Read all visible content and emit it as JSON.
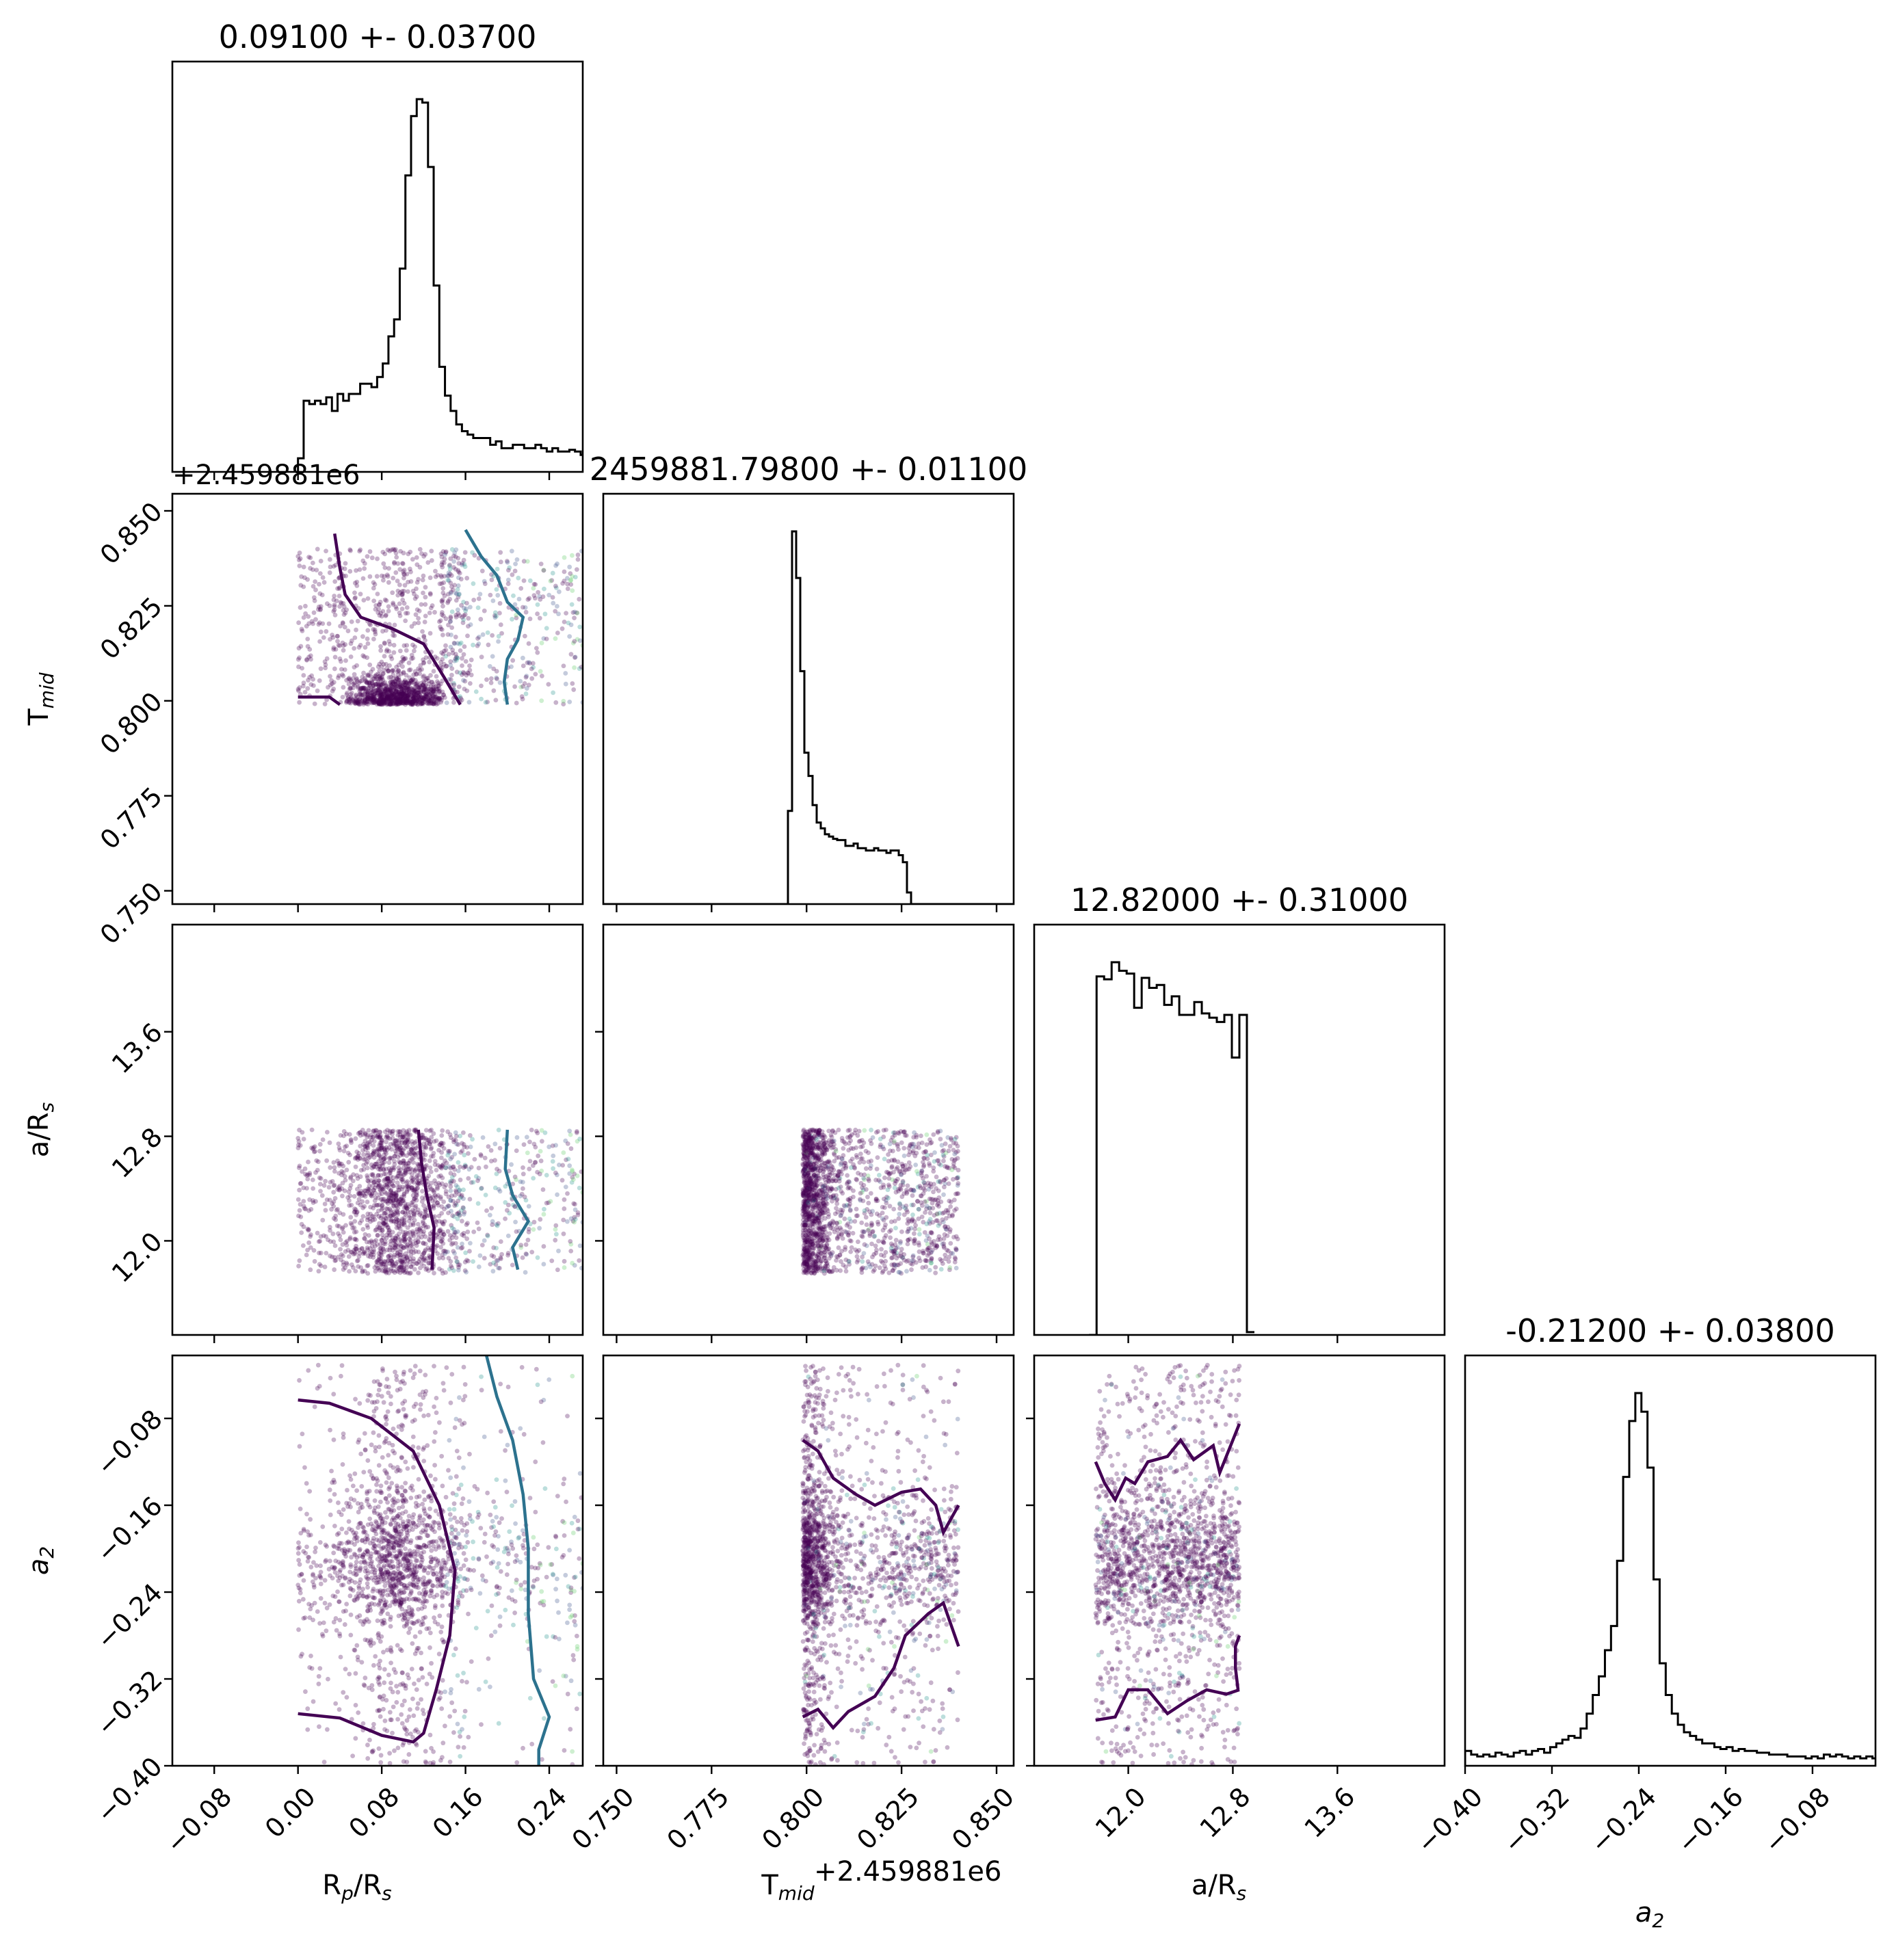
{
  "chart_data": {
    "type": "scatter",
    "kind": "corner-plot",
    "parameters": [
      {
        "label": "R_p/R_s",
        "title": "0.09100 +- 0.03700",
        "range": [
          -0.12,
          0.272
        ],
        "ticks": [
          -0.08,
          0.0,
          0.08,
          0.16,
          0.24
        ],
        "tick_labels": [
          "−0.08",
          "0.00",
          "0.08",
          "0.16",
          "0.24"
        ],
        "samples_range": [
          0.0,
          0.272
        ]
      },
      {
        "label": "T_mid",
        "title": "2459881.79800 +- 0.01100",
        "offset": "+2.459881e6",
        "range": [
          0.7465,
          0.8545
        ],
        "ticks": [
          0.75,
          0.775,
          0.8,
          0.825,
          0.85
        ],
        "tick_labels": [
          "0.750",
          "0.775",
          "0.800",
          "0.825",
          "0.850"
        ],
        "samples_range": [
          0.799,
          0.84
        ]
      },
      {
        "label": "a/R_s",
        "title": "12.82000 +- 0.31000",
        "range": [
          11.28,
          14.42
        ],
        "ticks": [
          12.0,
          12.8,
          13.6
        ],
        "tick_labels": [
          "12.0",
          "12.8",
          "13.6"
        ],
        "samples_range": [
          11.75,
          12.85
        ]
      },
      {
        "label": "a_2",
        "title": "-0.21200 +- 0.03800",
        "range": [
          -0.4,
          -0.022
        ],
        "ticks": [
          -0.4,
          -0.32,
          -0.24,
          -0.16,
          -0.08
        ],
        "tick_labels": [
          "−0.40",
          "−0.32",
          "−0.24",
          "−0.16",
          "−0.08"
        ],
        "samples_range": [
          -0.4,
          -0.03
        ]
      }
    ],
    "histograms": {
      "R_p/R_s": {
        "bin_start": 0.0,
        "bin_width": 0.0054,
        "counts": [
          8,
          42,
          40,
          42,
          40,
          44,
          36,
          46,
          42,
          46,
          46,
          52,
          52,
          50,
          56,
          64,
          80,
          90,
          120,
          175,
          210,
          220,
          218,
          180,
          110,
          62,
          45,
          36,
          28,
          24,
          22,
          20,
          20,
          20,
          16,
          18,
          14,
          14,
          16,
          16,
          14,
          14,
          16,
          14,
          12,
          14,
          12,
          12,
          13,
          12,
          10
        ]
      },
      "T_mid": {
        "bin_start": 0.7465,
        "bin_width": 0.00108,
        "counts": [
          0,
          0,
          0,
          0,
          0,
          0,
          0,
          0,
          0,
          0,
          0,
          0,
          0,
          0,
          0,
          0,
          0,
          0,
          0,
          0,
          0,
          0,
          0,
          0,
          0,
          0,
          0,
          0,
          0,
          0,
          0,
          0,
          0,
          0,
          0,
          0,
          0,
          0,
          0,
          0,
          0,
          0,
          0,
          0,
          0,
          80,
          320,
          280,
          200,
          130,
          110,
          85,
          70,
          65,
          60,
          58,
          56,
          55,
          55,
          50,
          50,
          52,
          48,
          48,
          46,
          46,
          48,
          46,
          46,
          44,
          46,
          46,
          42,
          36,
          10,
          0,
          0,
          0,
          0,
          0,
          0,
          0,
          0,
          0,
          0,
          0,
          0,
          0,
          0,
          0,
          0,
          0,
          0,
          0,
          0,
          0,
          0,
          0,
          0,
          0
        ]
      },
      "a/R_s": {
        "bin_start": 11.7,
        "bin_width": 0.0575,
        "counts": [
          0,
          252,
          250,
          262,
          256,
          254,
          230,
          251,
          244,
          246,
          232,
          238,
          225,
          225,
          234,
          226,
          223,
          220,
          225,
          195,
          225,
          2
        ]
      },
      "a_2": {
        "bin_start": -0.4,
        "bin_width": 0.0056,
        "counts": [
          8,
          6,
          5,
          6,
          5,
          7,
          6,
          5,
          7,
          8,
          6,
          8,
          9,
          7,
          10,
          12,
          14,
          16,
          15,
          20,
          28,
          38,
          48,
          62,
          75,
          110,
          155,
          185,
          200,
          190,
          160,
          100,
          55,
          38,
          28,
          22,
          18,
          16,
          14,
          12,
          12,
          10,
          9,
          10,
          8,
          9,
          8,
          8,
          7,
          7,
          6,
          6,
          6,
          5,
          5,
          5,
          4,
          5,
          4,
          6,
          5,
          6,
          5,
          4,
          5,
          4,
          5,
          4
        ]
      }
    }
  }
}
